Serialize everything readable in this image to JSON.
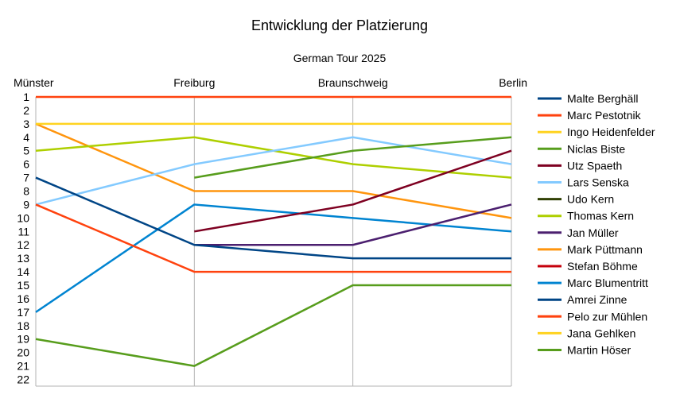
{
  "chart_data": {
    "type": "line",
    "title": "Entwicklung der Platzierung",
    "subtitle": "German Tour 2025",
    "categories": [
      "Münster",
      "Freiburg",
      "Braunschweig",
      "Berlin"
    ],
    "xlabel": "",
    "ylabel": "",
    "y_reversed": true,
    "ylim": [
      1,
      22
    ],
    "y_ticks": [
      1,
      2,
      3,
      4,
      5,
      6,
      7,
      8,
      9,
      10,
      11,
      12,
      13,
      14,
      15,
      16,
      17,
      18,
      19,
      20,
      21,
      22
    ],
    "grid": "vertical",
    "legend_position": "right",
    "series": [
      {
        "name": "Malte Berghäll",
        "color": "#004586",
        "values": [
          7,
          12,
          13,
          13
        ]
      },
      {
        "name": "Marc Pestotnik",
        "color": "#ff420e",
        "values": [
          9,
          14,
          14,
          14
        ]
      },
      {
        "name": "Ingo Heidenfelder",
        "color": "#ffd320",
        "values": [
          3,
          3,
          3,
          3
        ]
      },
      {
        "name": "Niclas Biste",
        "color": "#579d1c",
        "values": [
          null,
          7,
          5,
          4
        ]
      },
      {
        "name": "Utz Spaeth",
        "color": "#7e0021",
        "values": [
          null,
          11,
          9,
          5
        ]
      },
      {
        "name": "Lars Senska",
        "color": "#83caff",
        "values": [
          9,
          6,
          4,
          6
        ]
      },
      {
        "name": "Udo Kern",
        "color": "#314004",
        "values": [
          null,
          null,
          null,
          null
        ]
      },
      {
        "name": "Thomas Kern",
        "color": "#aecf00",
        "values": [
          5,
          4,
          6,
          7
        ]
      },
      {
        "name": "Jan Müller",
        "color": "#4b1f6f",
        "values": [
          null,
          12,
          12,
          9
        ]
      },
      {
        "name": "Mark Püttmann",
        "color": "#ff950e",
        "values": [
          3,
          8,
          8,
          10
        ]
      },
      {
        "name": "Stefan Böhme",
        "color": "#c5000b",
        "values": [
          null,
          null,
          null,
          null
        ]
      },
      {
        "name": "Marc Blumentritt",
        "color": "#0084d1",
        "values": [
          17,
          9,
          10,
          11
        ]
      },
      {
        "name": "Amrei Zinne",
        "color": "#004586",
        "values": [
          null,
          null,
          null,
          null
        ]
      },
      {
        "name": "Pelo zur Mühlen",
        "color": "#ff420e",
        "values": [
          1,
          1,
          1,
          1
        ]
      },
      {
        "name": "Jana Gehlken",
        "color": "#ffd320",
        "values": [
          null,
          null,
          null,
          null
        ]
      },
      {
        "name": "Martin Höser",
        "color": "#579d1c",
        "values": [
          19,
          21,
          15,
          15
        ]
      }
    ]
  }
}
